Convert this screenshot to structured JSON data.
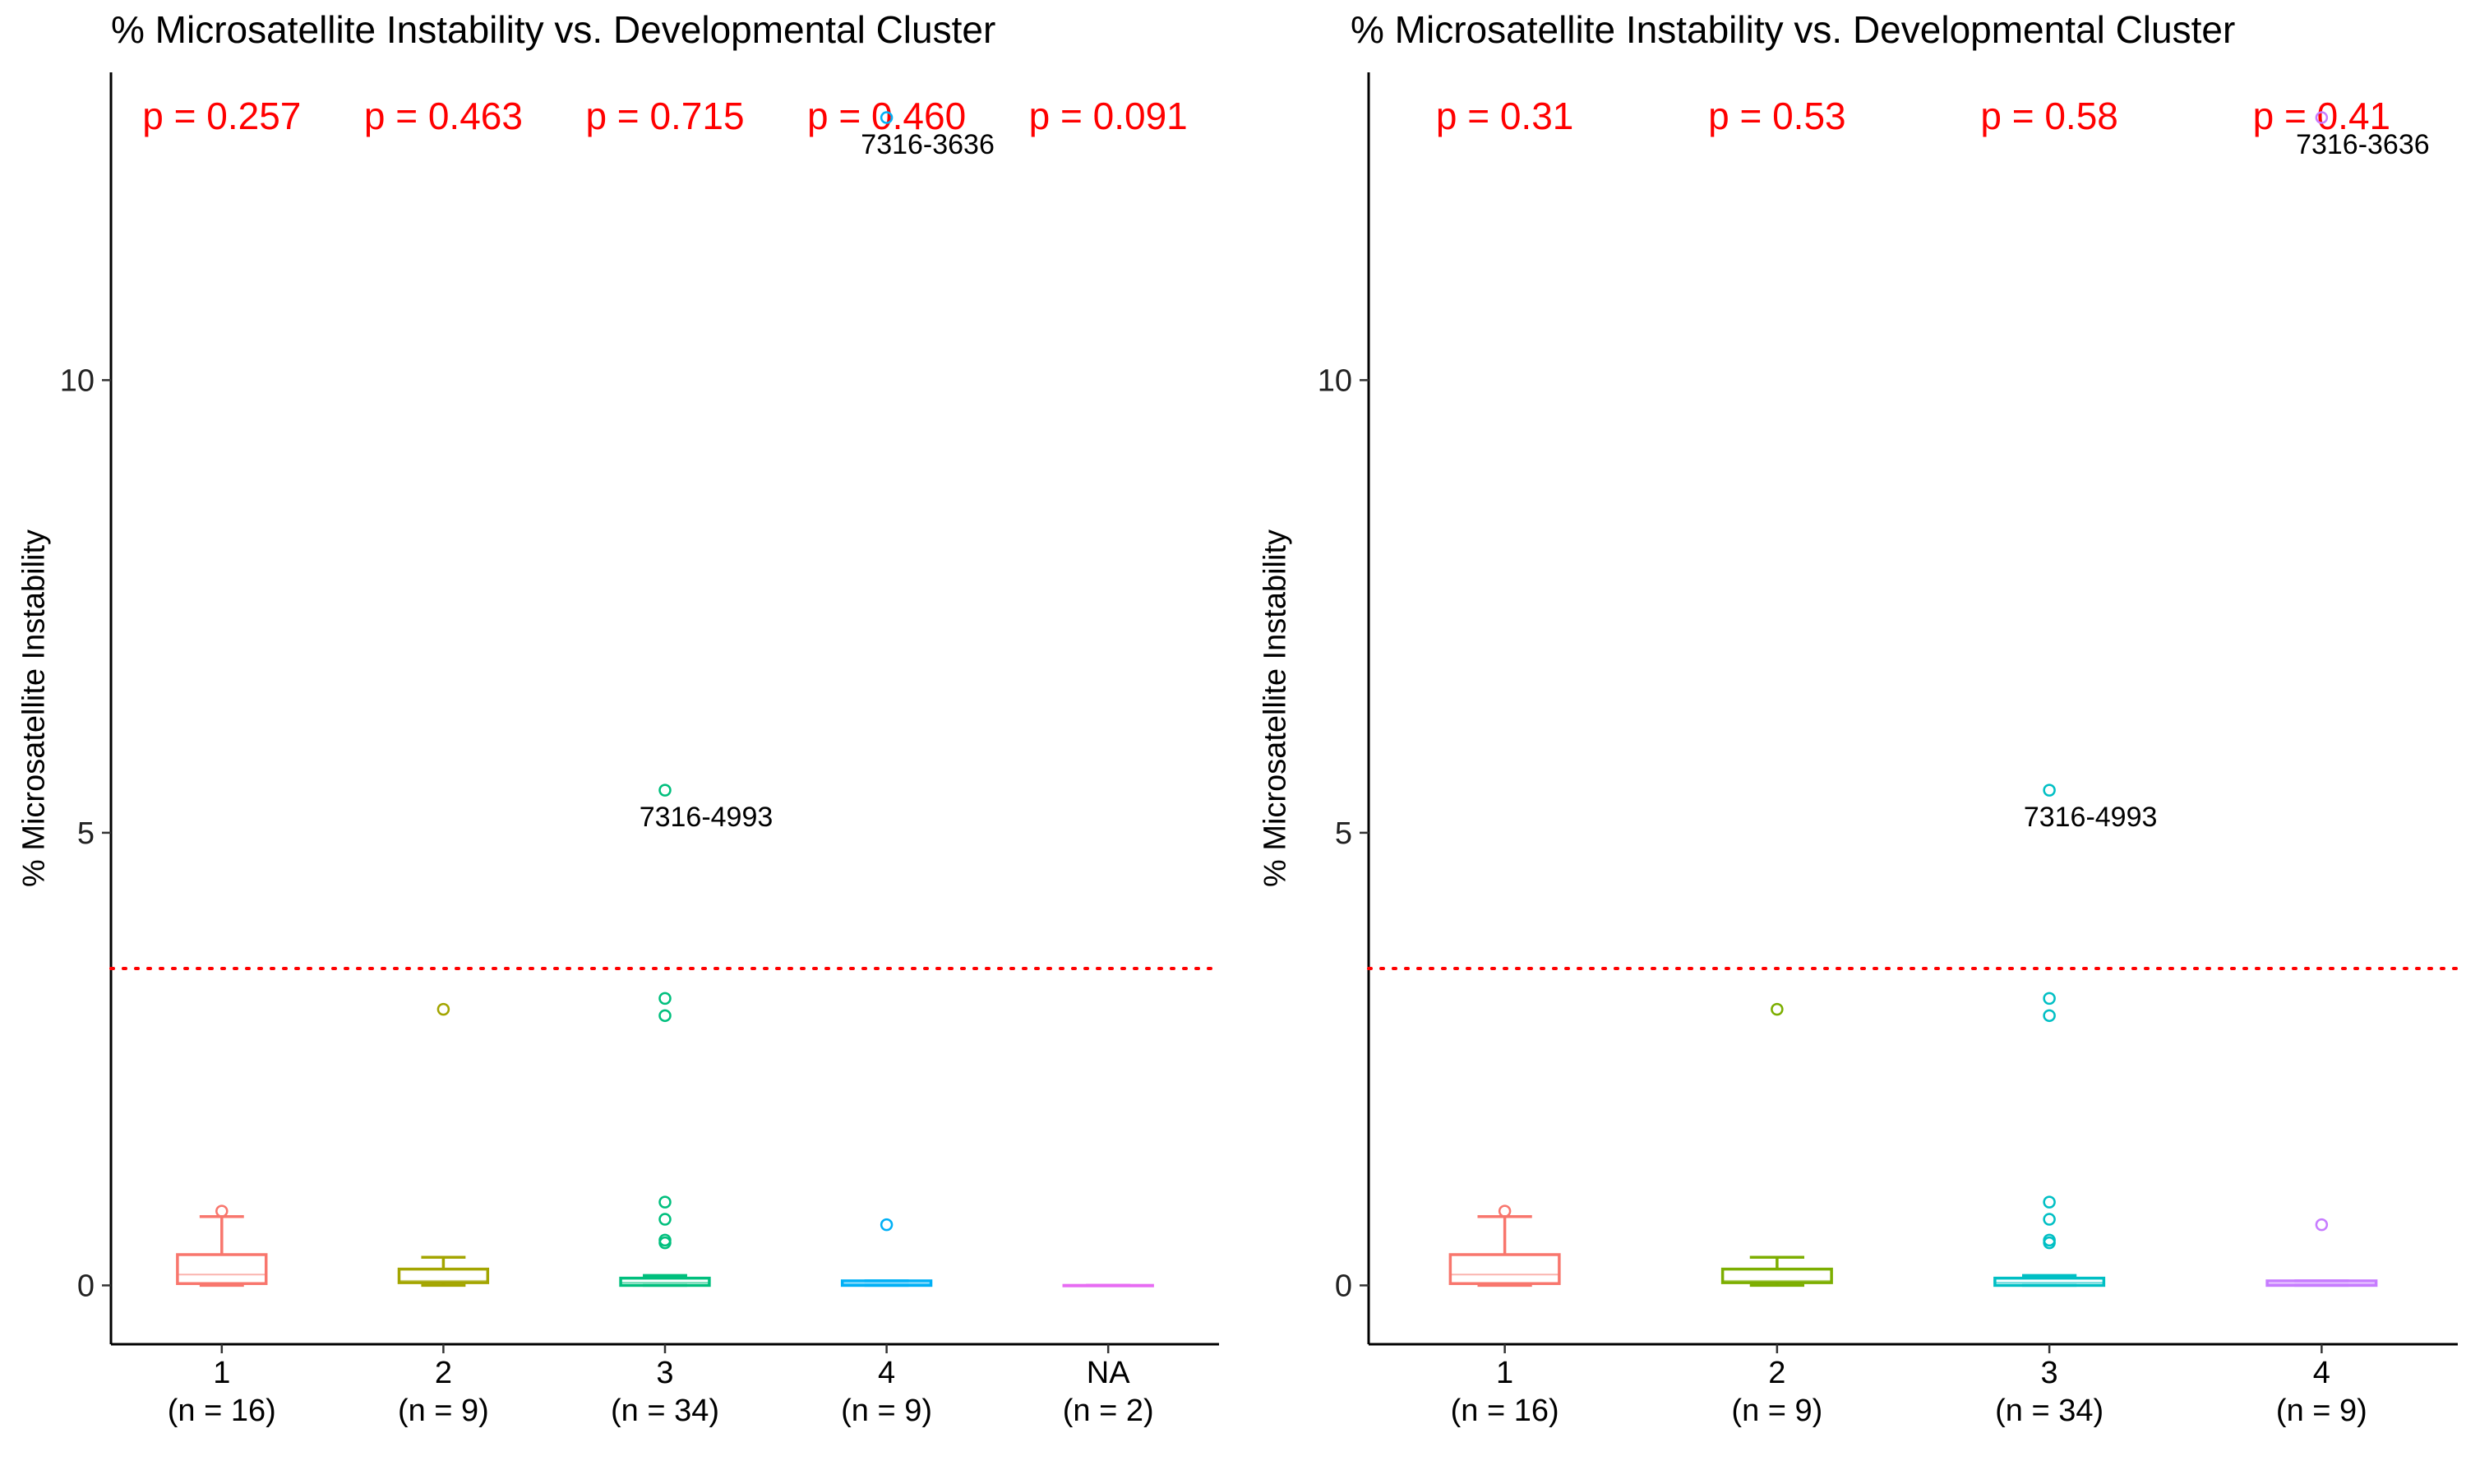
{
  "chart_data": [
    {
      "type": "box",
      "title": "% Microsatellite Instability vs. Developmental Cluster",
      "xlabel": "",
      "ylabel": "% Microsatellite Instability",
      "ylim": [
        -0.65,
        13.4
      ],
      "yticks": [
        0,
        5,
        10
      ],
      "threshold": 3.5,
      "threshold_color": "#ff0000",
      "groups": [
        {
          "category": "1",
          "n_label": "(n = 16)",
          "color": "#F8766D",
          "p_label": "p = 0.257",
          "q1": 0.02,
          "median": 0.12,
          "q3": 0.34,
          "whisker_low": 0.0,
          "whisker_high": 0.76,
          "outliers": [
            0.82
          ]
        },
        {
          "category": "2",
          "n_label": "(n = 9)",
          "color": "#A3A500",
          "p_label": "p = 0.463",
          "q1": 0.03,
          "median": 0.05,
          "q3": 0.18,
          "whisker_low": 0.0,
          "whisker_high": 0.31,
          "outliers": [
            3.05
          ]
        },
        {
          "category": "3",
          "n_label": "(n = 34)",
          "color": "#00BF7D",
          "p_label": "p = 0.715",
          "q1": 0.0,
          "median": 0.03,
          "q3": 0.08,
          "whisker_low": 0.0,
          "whisker_high": 0.11,
          "outliers": [
            0.47,
            0.5,
            0.73,
            0.92,
            2.98,
            3.17,
            5.47
          ]
        },
        {
          "category": "4",
          "n_label": "(n = 9)",
          "color": "#00B0F6",
          "p_label": "p = 0.460",
          "q1": 0.0,
          "median": 0.02,
          "q3": 0.05,
          "whisker_low": 0.0,
          "whisker_high": 0.05,
          "outliers": [
            0.67,
            12.9
          ]
        },
        {
          "category": "NA",
          "n_label": "(n = 2)",
          "color": "#E76BF3",
          "p_label": "p = 0.091",
          "q1": 0.0,
          "median": 0.0,
          "q3": 0.0,
          "whisker_low": 0.0,
          "whisker_high": 0.0,
          "outliers": []
        }
      ],
      "annotations": [
        {
          "text": "7316-4993",
          "x": "3",
          "y": 5.47
        },
        {
          "text": "7316-3636",
          "x": "4",
          "y": 12.9
        }
      ]
    },
    {
      "type": "box",
      "title": "% Microsatellite Instability vs. Developmental Cluster",
      "xlabel": "",
      "ylabel": "% Microsatellite Instability",
      "ylim": [
        -0.65,
        13.4
      ],
      "yticks": [
        0,
        5,
        10
      ],
      "threshold": 3.5,
      "threshold_color": "#ff0000",
      "groups": [
        {
          "category": "1",
          "n_label": "(n = 16)",
          "color": "#F8766D",
          "p_label": "p = 0.31",
          "q1": 0.02,
          "median": 0.12,
          "q3": 0.34,
          "whisker_low": 0.0,
          "whisker_high": 0.76,
          "outliers": [
            0.82
          ]
        },
        {
          "category": "2",
          "n_label": "(n = 9)",
          "color": "#7CAE00",
          "p_label": "p = 0.53",
          "q1": 0.03,
          "median": 0.05,
          "q3": 0.18,
          "whisker_low": 0.0,
          "whisker_high": 0.31,
          "outliers": [
            3.05
          ]
        },
        {
          "category": "3",
          "n_label": "(n = 34)",
          "color": "#00BFC4",
          "p_label": "p = 0.58",
          "q1": 0.0,
          "median": 0.03,
          "q3": 0.08,
          "whisker_low": 0.0,
          "whisker_high": 0.11,
          "outliers": [
            0.47,
            0.5,
            0.73,
            0.92,
            2.98,
            3.17,
            5.47
          ]
        },
        {
          "category": "4",
          "n_label": "(n = 9)",
          "color": "#C77CFF",
          "p_label": "p = 0.41",
          "q1": 0.0,
          "median": 0.02,
          "q3": 0.05,
          "whisker_low": 0.0,
          "whisker_high": 0.05,
          "outliers": [
            0.67,
            12.9
          ]
        }
      ],
      "annotations": [
        {
          "text": "7316-4993",
          "x": "3",
          "y": 5.47
        },
        {
          "text": "7316-3636",
          "x": "4",
          "y": 12.9
        }
      ]
    }
  ]
}
